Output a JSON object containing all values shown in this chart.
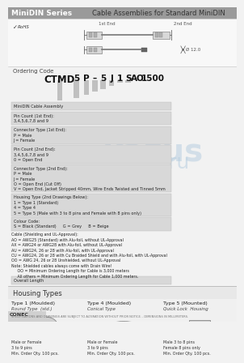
{
  "title_left": "MiniDIN Series",
  "title_right": "Cable Assemblies for Standard MiniDIN",
  "title_bg": "#9a9a9a",
  "title_fg": "#ffffff",
  "body_bg": "#f2f2f2",
  "ordering_label": "Ordering Code",
  "ordering_code_parts": [
    "CTMD",
    "5",
    "P",
    "–",
    "5",
    "J",
    "1",
    "S",
    "AO",
    "1500"
  ],
  "rohs_text": "RoHS",
  "connector_label_1st": "1st End",
  "connector_label_2nd": "2nd End",
  "dim_label": "Ø 12.0",
  "field_rows": [
    {
      "text": "MiniDIN Cable Assembly",
      "lines": 1
    },
    {
      "text": "Pin Count (1st End):\n3,4,5,6,7,8 and 9",
      "lines": 2
    },
    {
      "text": "Connector Type (1st End):\nP = Male\nJ = Female",
      "lines": 3
    },
    {
      "text": "Pin Count (2nd End):\n3,4,5,6,7,8 and 9\n0 = Open End",
      "lines": 3
    },
    {
      "text": "Connector Type (2nd End):\nP = Male\nJ = Female\nO = Open End (Cut Off)\nV = Open End, Jacket Stripped 40mm, Wire Ends Twisted and Tinned 5mm",
      "lines": 5
    },
    {
      "text": "Housing Type (2nd Drawings Below):\n1 = Type 1 (Standard)\n4 = Type 4\n5 = Type 5 (Male with 3 to 8 pins and Female with 8 pins only)",
      "lines": 4
    },
    {
      "text": "Colour Code:\nS = Black (Standard)     G = Grey     B = Beige",
      "lines": 2
    }
  ],
  "cable_text": "Cable (Shielding and UL-Approval):\nAO = AWG25 (Standard) with Alu-foil, without UL-Approval\nAX = AWG24 or AWG28 with Alu-foil, without UL-Approval\nAU = AWG24, 26 or 28 with Alu-foil, with UL-Approval\nCU = AWG24, 26 or 28 with Cu Braided Shield and with Alu-foil, with UL-Approval\nOO = AWG 24, 26 or 28 Unshielded, without UL-Approval\nNote: Shielded cables always come with Drain Wire!\n     OO = Minimum Ordering Length for Cable is 3,000 meters\n     All others = Minimum Ordering Length for Cable 1,000 meters.",
  "overall_length_text": "Overall Length",
  "housing_title": "Housing Types",
  "housing_types": [
    {
      "name": "Type 1 (Moulded)",
      "desc": "Round Type  (std.)",
      "detail": "Male or Female\n3 to 9 pins\nMin. Order Qty. 100 pcs."
    },
    {
      "name": "Type 4 (Moulded)",
      "desc": "Conical Type",
      "detail": "Male or Female\n3 to 9 pins\nMin. Order Qty. 100 pcs."
    },
    {
      "name": "Type 5 (Mounted)",
      "desc": "Quick Lock  Housing",
      "detail": "Male 3 to 8 pins\nFemale 8 pins only\nMin. Order Qty. 100 pcs."
    }
  ],
  "footer_text": "SPECIFICATIONS AND DRAWINGS ARE SUBJECT TO ALTERATION WITHOUT PRIOR NOTICE. - DIMENSIONS IN MILLIMETERS.",
  "watermark_text": "kazus",
  "watermark_subtext": ".ru",
  "watermark_color": "#b8cfe0"
}
